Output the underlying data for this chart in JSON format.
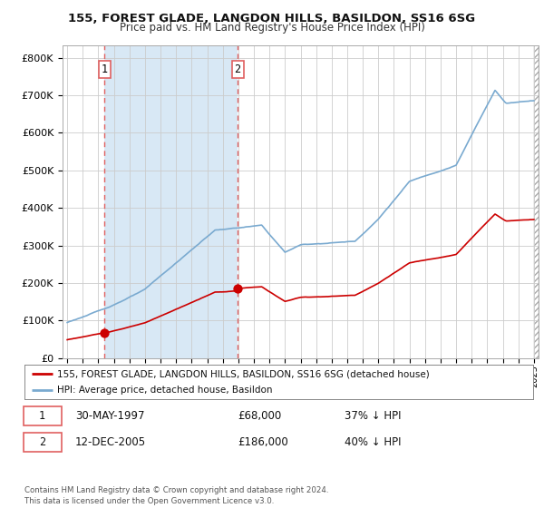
{
  "title": "155, FOREST GLADE, LANGDON HILLS, BASILDON, SS16 6SG",
  "subtitle": "Price paid vs. HM Land Registry's House Price Index (HPI)",
  "legend_line1": "155, FOREST GLADE, LANGDON HILLS, BASILDON, SS16 6SG (detached house)",
  "legend_line2": "HPI: Average price, detached house, Basildon",
  "sale1_label": "1",
  "sale1_date": "30-MAY-1997",
  "sale1_price": "£68,000",
  "sale1_hpi": "37% ↓ HPI",
  "sale1_year": 1997.41,
  "sale1_value": 68000,
  "sale2_label": "2",
  "sale2_date": "12-DEC-2005",
  "sale2_price": "£186,000",
  "sale2_hpi": "40% ↓ HPI",
  "sale2_year": 2005.95,
  "sale2_value": 186000,
  "red_line_color": "#cc0000",
  "blue_line_color": "#7aaad0",
  "dashed_line_color": "#e06060",
  "shade_color": "#d8e8f5",
  "background_color": "#ffffff",
  "plot_bg_color": "#ffffff",
  "ylim": [
    0,
    800000
  ],
  "xlim_start": 1994.7,
  "xlim_end": 2025.3,
  "footer": "Contains HM Land Registry data © Crown copyright and database right 2024.\nThis data is licensed under the Open Government Licence v3.0."
}
